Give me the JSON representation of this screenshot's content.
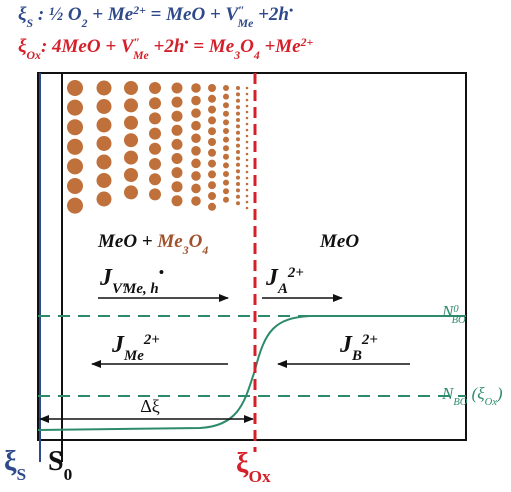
{
  "equations": [
    [
      "ξ",
      "S",
      " : ½ O",
      "2",
      " + Me",
      "2+",
      " = MeO + V",
      "″",
      "Me",
      " +2h",
      "•"
    ],
    [
      "ξ",
      "Ox",
      ": 4MeO + V",
      "″",
      "Me",
      " +2h",
      "•",
      " = Me",
      "3",
      "O",
      "4",
      " +Me",
      "2+"
    ]
  ],
  "regions": {
    "left": [
      "MeO + ",
      "Me",
      "3",
      "O",
      "4"
    ],
    "right": "MeO"
  },
  "fluxes": [
    [
      "J",
      "V″",
      "Me",
      ", h",
      "•"
    ],
    [
      "J",
      "A",
      "2+"
    ],
    [
      "J",
      "Me",
      "2+"
    ],
    [
      "J",
      "B",
      "2+"
    ]
  ],
  "levels": [
    [
      "N",
      "0",
      "BO"
    ],
    [
      "N",
      "BO",
      " (ξ",
      "Ox",
      ")"
    ]
  ],
  "distance": "Δξ",
  "axis_labels": [
    [
      "ξ",
      "S"
    ],
    [
      "S",
      "0"
    ],
    [
      "ξ",
      "Ox"
    ]
  ]
}
